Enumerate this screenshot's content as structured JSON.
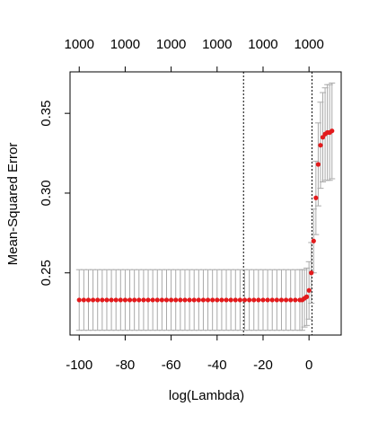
{
  "chart_data": {
    "type": "scatter",
    "title": "",
    "xlabel": "log(Lambda)",
    "ylabel": "Mean-Squared Error",
    "xlim": [
      -104,
      14
    ],
    "ylim": [
      0.211,
      0.376
    ],
    "x_ticks": [
      -100,
      -80,
      -60,
      -40,
      -20,
      0
    ],
    "x_tick_labels": [
      "-100",
      "-80",
      "-60",
      "-40",
      "-20",
      "0"
    ],
    "y_ticks": [
      0.25,
      0.3,
      0.35
    ],
    "y_tick_labels": [
      "0.25",
      "0.30",
      "0.35"
    ],
    "top_axis": {
      "positions": [
        -100,
        -80,
        -60,
        -40,
        -20,
        0
      ],
      "labels": [
        "1000",
        "1000",
        "1000",
        "1000",
        "1000",
        "1000"
      ]
    },
    "reference_lines": [
      {
        "x": -28.5,
        "style": "dotted"
      },
      {
        "x": 1.3,
        "style": "dotted"
      }
    ],
    "series": [
      {
        "x": [
          -100,
          -98,
          -96,
          -94,
          -92,
          -90,
          -88,
          -86,
          -84,
          -82,
          -80,
          -78,
          -76,
          -74,
          -72,
          -70,
          -68,
          -66,
          -64,
          -62,
          -60,
          -58,
          -56,
          -54,
          -52,
          -50,
          -48,
          -46,
          -44,
          -42,
          -40,
          -38,
          -36,
          -34,
          -32,
          -30,
          -28,
          -26,
          -24,
          -22,
          -20,
          -18,
          -16,
          -14,
          -12,
          -10,
          -8,
          -6,
          -4,
          -3,
          -2,
          -1,
          0,
          1,
          2,
          3,
          4,
          5,
          6,
          7,
          8,
          9,
          10
        ],
        "y": [
          0.233,
          0.233,
          0.233,
          0.233,
          0.233,
          0.233,
          0.233,
          0.233,
          0.233,
          0.233,
          0.233,
          0.233,
          0.233,
          0.233,
          0.233,
          0.233,
          0.233,
          0.233,
          0.233,
          0.233,
          0.233,
          0.233,
          0.233,
          0.233,
          0.233,
          0.233,
          0.233,
          0.233,
          0.233,
          0.233,
          0.233,
          0.233,
          0.233,
          0.233,
          0.233,
          0.233,
          0.233,
          0.233,
          0.233,
          0.233,
          0.233,
          0.233,
          0.233,
          0.233,
          0.233,
          0.233,
          0.233,
          0.233,
          0.233,
          0.233,
          0.234,
          0.235,
          0.239,
          0.25,
          0.27,
          0.297,
          0.318,
          0.33,
          0.335,
          0.337,
          0.338,
          0.338,
          0.339
        ],
        "upper": [
          0.252,
          0.252,
          0.252,
          0.252,
          0.252,
          0.252,
          0.252,
          0.252,
          0.252,
          0.252,
          0.252,
          0.252,
          0.252,
          0.252,
          0.252,
          0.252,
          0.252,
          0.252,
          0.252,
          0.252,
          0.252,
          0.252,
          0.252,
          0.252,
          0.252,
          0.252,
          0.252,
          0.252,
          0.252,
          0.252,
          0.252,
          0.252,
          0.252,
          0.252,
          0.252,
          0.252,
          0.252,
          0.252,
          0.252,
          0.252,
          0.252,
          0.252,
          0.252,
          0.252,
          0.252,
          0.252,
          0.252,
          0.252,
          0.252,
          0.252,
          0.252,
          0.253,
          0.257,
          0.269,
          0.29,
          0.32,
          0.344,
          0.357,
          0.363,
          0.366,
          0.368,
          0.368,
          0.369
        ],
        "lower": [
          0.214,
          0.214,
          0.214,
          0.214,
          0.214,
          0.214,
          0.214,
          0.214,
          0.214,
          0.214,
          0.214,
          0.214,
          0.214,
          0.214,
          0.214,
          0.214,
          0.214,
          0.214,
          0.214,
          0.214,
          0.214,
          0.214,
          0.214,
          0.214,
          0.214,
          0.214,
          0.214,
          0.214,
          0.214,
          0.214,
          0.214,
          0.214,
          0.214,
          0.214,
          0.214,
          0.214,
          0.214,
          0.214,
          0.214,
          0.214,
          0.214,
          0.214,
          0.214,
          0.214,
          0.214,
          0.214,
          0.214,
          0.214,
          0.214,
          0.214,
          0.216,
          0.217,
          0.221,
          0.231,
          0.25,
          0.274,
          0.292,
          0.303,
          0.307,
          0.308,
          0.308,
          0.308,
          0.309
        ],
        "point_color": "#e31a1c",
        "errorbar_color": "#a9a9a9"
      }
    ]
  }
}
